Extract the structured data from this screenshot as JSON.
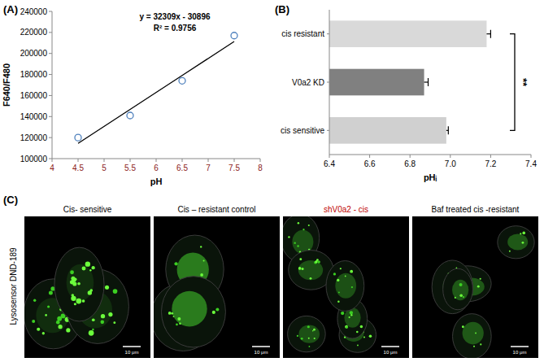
{
  "chart_data": [
    {
      "type": "scatter",
      "panel_label": "(A)",
      "x_label": "pH",
      "y_label": "F640/F480",
      "annotations": [
        "y = 32309x - 30896",
        "R² = 0.9756"
      ],
      "x": [
        4.5,
        5.5,
        6.5,
        7.5
      ],
      "series": [
        {
          "type": "scatter",
          "color": "#4f81bd",
          "marker": "circle",
          "values": [
            120000,
            141000,
            174000,
            217000
          ]
        },
        {
          "type": "line",
          "color": "#000000",
          "line_style": "solid",
          "values": [
            114500,
            146800,
            179100,
            211400
          ]
        }
      ],
      "xlim": [
        4,
        8
      ],
      "xticks": [
        4,
        4.5,
        5,
        5.5,
        6,
        6.5,
        7,
        7.5,
        8
      ],
      "ylim": [
        100000,
        240000
      ],
      "yticks": [
        100000,
        120000,
        140000,
        160000,
        180000,
        200000,
        220000,
        240000
      ],
      "grid": false
    },
    {
      "type": "bar",
      "orientation": "horizontal",
      "panel_label": "(B)",
      "x_label": "pHᵢ",
      "categories": [
        "cis resistant",
        "V0a2 KD",
        "cis sensitive"
      ],
      "values": [
        7.18,
        6.87,
        6.98
      ],
      "errors": [
        0.02,
        0.02,
        0.01
      ],
      "colors": [
        "#d9d9d9",
        "#808080",
        "#d0d0d0"
      ],
      "annotations": [
        "**"
      ],
      "xlim": [
        6.4,
        7.4
      ],
      "xticks": [
        6.4,
        6.6,
        6.8,
        {
          "value": 7,
          "label": "7.0"
        },
        7.2,
        7.4
      ],
      "grid": false
    }
  ],
  "panel_c": {
    "panel_label": "(C)",
    "row_label": "Lysosensor DND-189",
    "images": [
      {
        "title": "Cis- sensitive",
        "title_color": "#000000",
        "scale_bar": "10 μm"
      },
      {
        "title": "Cis – resistant control",
        "title_color": "#000000",
        "scale_bar": "10 μm"
      },
      {
        "title": "shV0a2 - cis",
        "title_color": "#c00000",
        "scale_bar": "10 μm"
      },
      {
        "title": "Baf treated   cis -resistant",
        "title_color": "#000000",
        "scale_bar": "10 μm"
      }
    ]
  }
}
